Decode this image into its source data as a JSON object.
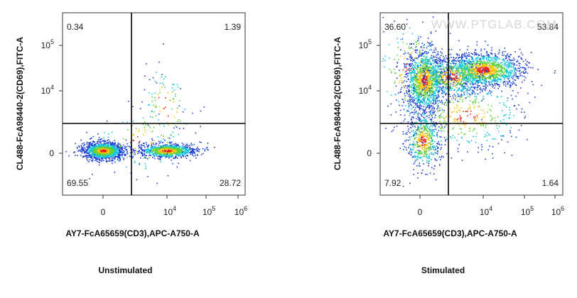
{
  "panels": [
    {
      "y_label": "CL488-FcA98440-2(CD69),FITC-A",
      "x_label": "AY7-FcA65659(CD3),APC-A750-A",
      "caption": "Unstimulated",
      "quadrants": {
        "upper_left": "0.34",
        "upper_right": "1.39",
        "lower_left": "69.55",
        "lower_right": "28.72"
      }
    },
    {
      "y_label": "CL488-FcA98440-2(CD69),FITC-A",
      "x_label": "AY7-FcA65659(CD3),APC-A750-A",
      "caption": "Stimulated",
      "quadrants": {
        "upper_left": "36.60",
        "upper_right": "53.84",
        "lower_left": "7.92",
        "lower_right": "1.64"
      },
      "watermark": "WWW.PTGLAB.COM"
    }
  ],
  "x_ticks": [
    {
      "base": "0"
    },
    {
      "base": "10",
      "exp": "4"
    },
    {
      "base": "10",
      "exp": "5"
    },
    {
      "base": "10",
      "exp": "6"
    }
  ],
  "y_ticks": [
    {
      "base": "0"
    },
    {
      "base": "10",
      "exp": "4"
    },
    {
      "base": "10",
      "exp": "5"
    }
  ]
}
